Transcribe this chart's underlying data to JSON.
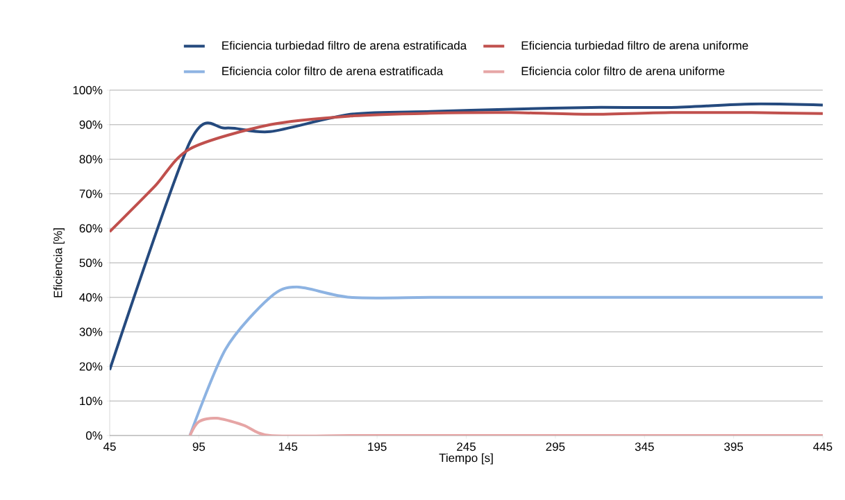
{
  "chart_data": {
    "type": "line",
    "xlabel": "Tiempo [s]",
    "ylabel": "Eficiencia [%]",
    "xlim": [
      45,
      445
    ],
    "xticks": [
      45,
      95,
      145,
      195,
      245,
      295,
      345,
      395,
      445
    ],
    "ylim": [
      0,
      100
    ],
    "yticks": [
      {
        "value": 0,
        "label": "0%"
      },
      {
        "value": 10,
        "label": "10%"
      },
      {
        "value": 20,
        "label": "20%"
      },
      {
        "value": 30,
        "label": "30%"
      },
      {
        "value": 40,
        "label": "40%"
      },
      {
        "value": 50,
        "label": "50%"
      },
      {
        "value": 60,
        "label": "60%"
      },
      {
        "value": 70,
        "label": "70%"
      },
      {
        "value": 80,
        "label": "80%"
      },
      {
        "value": 90,
        "label": "90%"
      },
      {
        "value": 100,
        "label": "100%"
      }
    ],
    "grid": "y",
    "legend": "top",
    "marker": "none",
    "line_style": "solid",
    "series": [
      {
        "name": "Eficiencia turbiedad filtro de arena estratificada",
        "color": "#254a7e",
        "x": [
          45,
          90,
          110,
          135,
          180,
          225,
          270,
          315,
          360,
          405,
          445
        ],
        "values": [
          19,
          85,
          89,
          88,
          93,
          93.8,
          94.5,
          95,
          95,
          96,
          95.7
        ]
      },
      {
        "name": "Eficiencia turbiedad filtro de arena uniforme",
        "color": "#c0504d",
        "x": [
          45,
          70,
          90,
          135,
          180,
          225,
          270,
          315,
          360,
          405,
          445
        ],
        "values": [
          59,
          72,
          83,
          90,
          92.5,
          93.3,
          93.5,
          93,
          93.5,
          93.5,
          93.2
        ]
      },
      {
        "name": "Eficiencia color filtro de arena estratificada",
        "color": "#8db3e2",
        "x": [
          90,
          110,
          135,
          150,
          180,
          225,
          270,
          315,
          360,
          405,
          445
        ],
        "values": [
          0,
          25,
          40,
          43,
          40,
          40,
          40,
          40,
          40,
          40,
          40
        ]
      },
      {
        "name": "Eficiencia color filtro de arena uniforme",
        "color": "#e6a5a5",
        "x": [
          90,
          95,
          105,
          120,
          135,
          180,
          225,
          270,
          315,
          360,
          405,
          445
        ],
        "values": [
          0,
          4,
          5,
          3,
          0,
          0,
          0,
          0,
          0,
          0,
          0,
          0
        ]
      }
    ]
  }
}
